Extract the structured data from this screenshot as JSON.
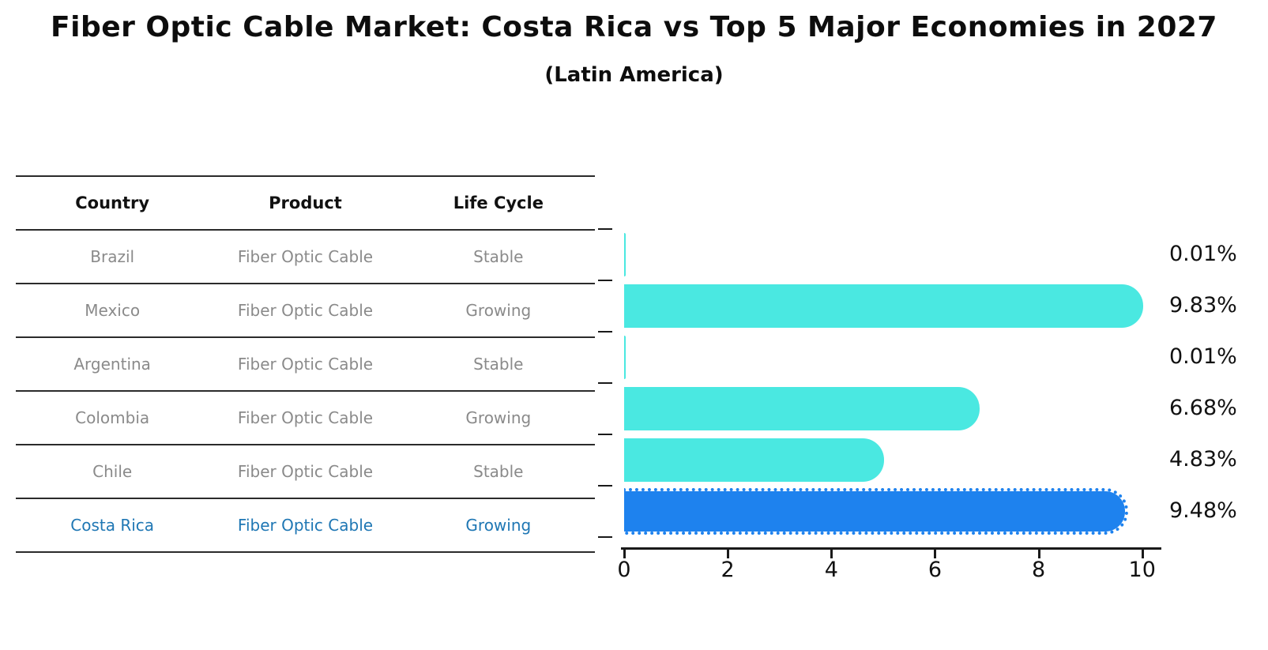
{
  "page": {
    "title": "Fiber Optic Cable Market: Costa Rica vs Top 5 Major Economies in 2027",
    "subtitle": "(Latin America)"
  },
  "table": {
    "headers": [
      "Country",
      "Product",
      "Life Cycle"
    ],
    "rows": [
      {
        "country": "Brazil",
        "product": "Fiber Optic Cable",
        "life_cycle": "Stable",
        "highlight": false
      },
      {
        "country": "Mexico",
        "product": "Fiber Optic Cable",
        "life_cycle": "Growing",
        "highlight": false
      },
      {
        "country": "Argentina",
        "product": "Fiber Optic Cable",
        "life_cycle": "Stable",
        "highlight": false
      },
      {
        "country": "Colombia",
        "product": "Fiber Optic Cable",
        "life_cycle": "Growing",
        "highlight": false
      },
      {
        "country": "Chile",
        "product": "Fiber Optic Cable",
        "life_cycle": "Stable",
        "highlight": false
      },
      {
        "country": "Costa Rica",
        "product": "Fiber Optic Cable",
        "life_cycle": "Growing",
        "highlight": true
      }
    ]
  },
  "chart_data": {
    "type": "bar",
    "orientation": "horizontal",
    "title": "Fiber Optic Cable Market: Costa Rica vs Top 5 Major Economies in 2027",
    "subtitle": "(Latin America)",
    "categories": [
      "Brazil",
      "Mexico",
      "Argentina",
      "Colombia",
      "Chile",
      "Costa Rica"
    ],
    "values": [
      0.01,
      9.83,
      0.01,
      6.68,
      4.83,
      9.48
    ],
    "value_labels": [
      "0.01%",
      "9.83%",
      "0.01%",
      "6.68%",
      "4.83%",
      "9.48%"
    ],
    "xlabel": "",
    "ylabel": "",
    "xlim": [
      0,
      10.34
    ],
    "x_ticks": [
      0,
      2,
      4,
      6,
      8,
      10
    ],
    "grid": false,
    "legend": "none",
    "bar_color": "#4AE8E1",
    "highlight_color": "#1E82EE",
    "highlight_index": 5,
    "highlight_style": "dotted-border"
  }
}
